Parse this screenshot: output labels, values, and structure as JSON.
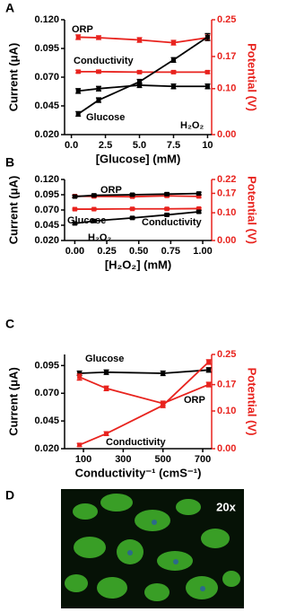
{
  "chart_data": [
    {
      "type": "line",
      "panel": "A",
      "xlabel": "[Glucose]  (mM)",
      "ylabel": "Current (μA)",
      "y2label": "Potential (V)",
      "x": [
        0.5,
        2,
        5,
        7.5,
        10
      ],
      "xlim": [
        -0.5,
        10.3
      ],
      "xticks": [
        {
          "value": 0,
          "label": "0.0"
        },
        2.5,
        {
          "value": 5,
          "label": "5.0"
        },
        7.5,
        10
      ],
      "ylim": [
        0.02,
        0.12
      ],
      "yticks": [
        {
          "value": 0.02,
          "label": "0.020"
        },
        {
          "value": 0.045,
          "label": "0.045"
        },
        {
          "value": 0.07,
          "label": "0.070"
        },
        {
          "value": 0.095,
          "label": "0.095"
        },
        {
          "value": 0.12,
          "label": "0.120"
        }
      ],
      "y2lim": [
        0,
        0.25
      ],
      "y2ticks": [
        {
          "value": 0,
          "label": "0.00"
        },
        {
          "value": 0.1,
          "label": "0.10"
        },
        0.17,
        0.25
      ],
      "series": [
        {
          "name": "ORP",
          "color": "#e8231e",
          "axis": "y2",
          "values": [
            0.212,
            0.211,
            0.206,
            0.2,
            0.211
          ],
          "errors": [
            0.005,
            0.004,
            0.005,
            0.005,
            0.006
          ]
        },
        {
          "name": "Conductivity",
          "color": "#e8231e",
          "axis": "y2",
          "values": [
            0.137,
            0.137,
            0.136,
            0.136,
            0.136
          ],
          "errors": [
            0.003,
            0.003,
            0.003,
            0.003,
            0.003
          ]
        },
        {
          "name": "Glucose",
          "color": "#000000",
          "values": [
            0.038,
            0.05,
            0.066,
            0.085,
            0.105
          ],
          "errors": [
            0.002,
            0.002,
            0.002,
            0.002,
            0.003
          ]
        },
        {
          "name": "H₂O₂",
          "color": "#000000",
          "values": [
            0.058,
            0.06,
            0.063,
            0.062,
            0.062
          ],
          "errors": [
            0.002,
            0.002,
            0.002,
            0.002,
            0.002
          ]
        }
      ]
    },
    {
      "type": "line",
      "panel": "B",
      "xlabel": "[H₂O₂] (mM)",
      "ylabel": "Current (μA)",
      "y2label": "Potential (V)",
      "x": [
        0,
        0.15,
        0.45,
        0.72,
        0.97
      ],
      "xlim": [
        -0.08,
        1.07
      ],
      "xticks": [
        {
          "value": 0,
          "label": "0.00"
        },
        0.25,
        {
          "value": 0.5,
          "label": "0.50"
        },
        0.75,
        {
          "value": 1,
          "label": "1.00"
        }
      ],
      "ylim": [
        0.02,
        0.12
      ],
      "yticks": [
        {
          "value": 0.02,
          "label": "0.020"
        },
        {
          "value": 0.045,
          "label": "0.045"
        },
        {
          "value": 0.07,
          "label": "0.070"
        },
        {
          "value": 0.095,
          "label": "0.095"
        },
        {
          "value": 0.12,
          "label": "0.120"
        }
      ],
      "y2lim": [
        0,
        0.22
      ],
      "y2ticks": [
        {
          "value": 0,
          "label": "0.00"
        },
        {
          "value": 0.1,
          "label": "0.10"
        },
        0.17,
        0.22
      ],
      "series": [
        {
          "name": "ORP",
          "color": "#e8231e",
          "axis": "y2",
          "values": [
            0.16,
            0.159,
            0.158,
            0.161,
            0.159
          ],
          "errors": [
            0.004,
            0.004,
            0.004,
            0.004,
            0.004
          ]
        },
        {
          "name": "Glucose",
          "color": "#000000",
          "values": [
            0.092,
            0.094,
            0.095,
            0.096,
            0.097
          ],
          "errors": [
            0.002,
            0.002,
            0.002,
            0.002,
            0.002
          ]
        },
        {
          "name": "Conductivity",
          "color": "#e8231e",
          "axis": "y2",
          "values": [
            0.113,
            0.113,
            0.114,
            0.114,
            0.115
          ],
          "errors": [
            0.003,
            0.003,
            0.003,
            0.003,
            0.003
          ]
        },
        {
          "name": "H₂O₂",
          "color": "#000000",
          "values": [
            0.048,
            0.052,
            0.057,
            0.062,
            0.067
          ],
          "errors": [
            0.002,
            0.002,
            0.002,
            0.002,
            0.002
          ]
        }
      ]
    },
    {
      "type": "line",
      "panel": "C",
      "xlabel": "Conductivity⁻¹ (cmS⁻¹)",
      "ylabel": "Current (μA)",
      "y2label": "Potential (V)",
      "x": [
        80,
        215,
        500,
        730
      ],
      "xlim": [
        5,
        745
      ],
      "xticks": [
        100,
        300,
        500,
        700
      ],
      "ylim": [
        0.02,
        0.105
      ],
      "yticks": [
        {
          "value": 0.02,
          "label": "0.020"
        },
        {
          "value": 0.045,
          "label": "0.045"
        },
        {
          "value": 0.07,
          "label": "0.070"
        },
        {
          "value": 0.095,
          "label": "0.095"
        }
      ],
      "y2lim": [
        0,
        0.25
      ],
      "y2ticks": [
        {
          "value": 0,
          "label": "0.00"
        },
        {
          "value": 0.1,
          "label": "0.10"
        },
        0.17,
        0.25
      ],
      "series": [
        {
          "name": "Glucose",
          "color": "#000000",
          "values": [
            0.088,
            0.089,
            0.088,
            0.091
          ],
          "errors": [
            0.002,
            0.002,
            0.002,
            0.002
          ]
        },
        {
          "name": "ORP",
          "color": "#e8231e",
          "axis": "y2",
          "values": [
            0.19,
            0.16,
            0.12,
            0.17
          ],
          "errors": [
            0.008,
            0.006,
            0.006,
            0.006
          ]
        },
        {
          "name": "Conductivity",
          "color": "#e8231e",
          "axis": "y2",
          "values": [
            0.01,
            0.04,
            0.115,
            0.23
          ],
          "errors": [
            0.004,
            0.005,
            0.006,
            0.006
          ]
        }
      ]
    }
  ],
  "image_panel": {
    "panel": "D",
    "magnification": "20x"
  }
}
